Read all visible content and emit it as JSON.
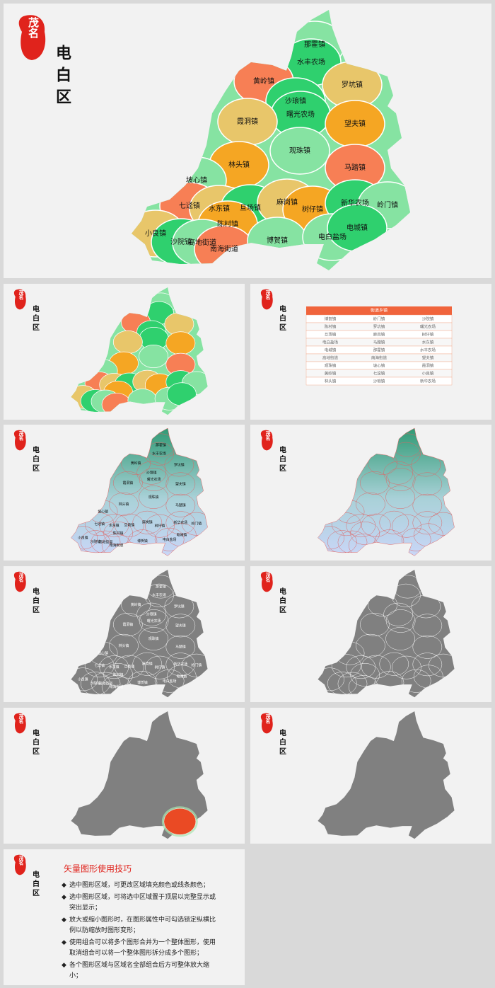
{
  "brand": "茂名",
  "district": "电白区",
  "towns": [
    "那霍镇",
    "水丰农场",
    "黄岭镇",
    "罗坑镇",
    "沙琅镇",
    "曙光农场",
    "霞洞镇",
    "望夫镇",
    "观珠镇",
    "林头镇",
    "马踏镇",
    "坡心镇",
    "七迳镇",
    "水东镇",
    "旦场镇",
    "麻岗镇",
    "树仔镇",
    "新华农场",
    "岭门镇",
    "陈村镇",
    "小良镇",
    "沙院镇",
    "高地街道",
    "南海街道",
    "博贺镇",
    "电白盐场",
    "电城镇"
  ],
  "table": {
    "header": "街道乡镇",
    "rows": [
      [
        "博贺镇",
        "岭门镇",
        "沙院镇"
      ],
      [
        "陈村镇",
        "罗坑镇",
        "曙光农场"
      ],
      [
        "旦场镇",
        "麻岗镇",
        "树仔镇"
      ],
      [
        "电白盐场",
        "马踏镇",
        "水东镇"
      ],
      [
        "电城镇",
        "那霍镇",
        "水丰农场"
      ],
      [
        "高地街道",
        "南海街道",
        "望夫镇"
      ],
      [
        "观珠镇",
        "坡心镇",
        "霞洞镇"
      ],
      [
        "黄岭镇",
        "七迳镇",
        "小良镇"
      ],
      [
        "林头镇",
        "沙琅镇",
        "新华农场"
      ]
    ]
  },
  "tips": {
    "title": "矢量图形使用技巧",
    "items": [
      "选中图形区域，可更改区域填充颜色或线条颜色；",
      "选中图形区域，可将选中区域置于顶层以完整显示或突出显示；",
      "放大或缩小图形时，在图形属性中可勾选锁定纵横比例以防缩放时图形变形；",
      "使用组合可以将多个图形合并为一个整体图形，使用取消组合可以将一个整体图形拆分成多个图形；",
      "各个图形区域与区域名全部组合后方可整体放大缩小；"
    ]
  }
}
